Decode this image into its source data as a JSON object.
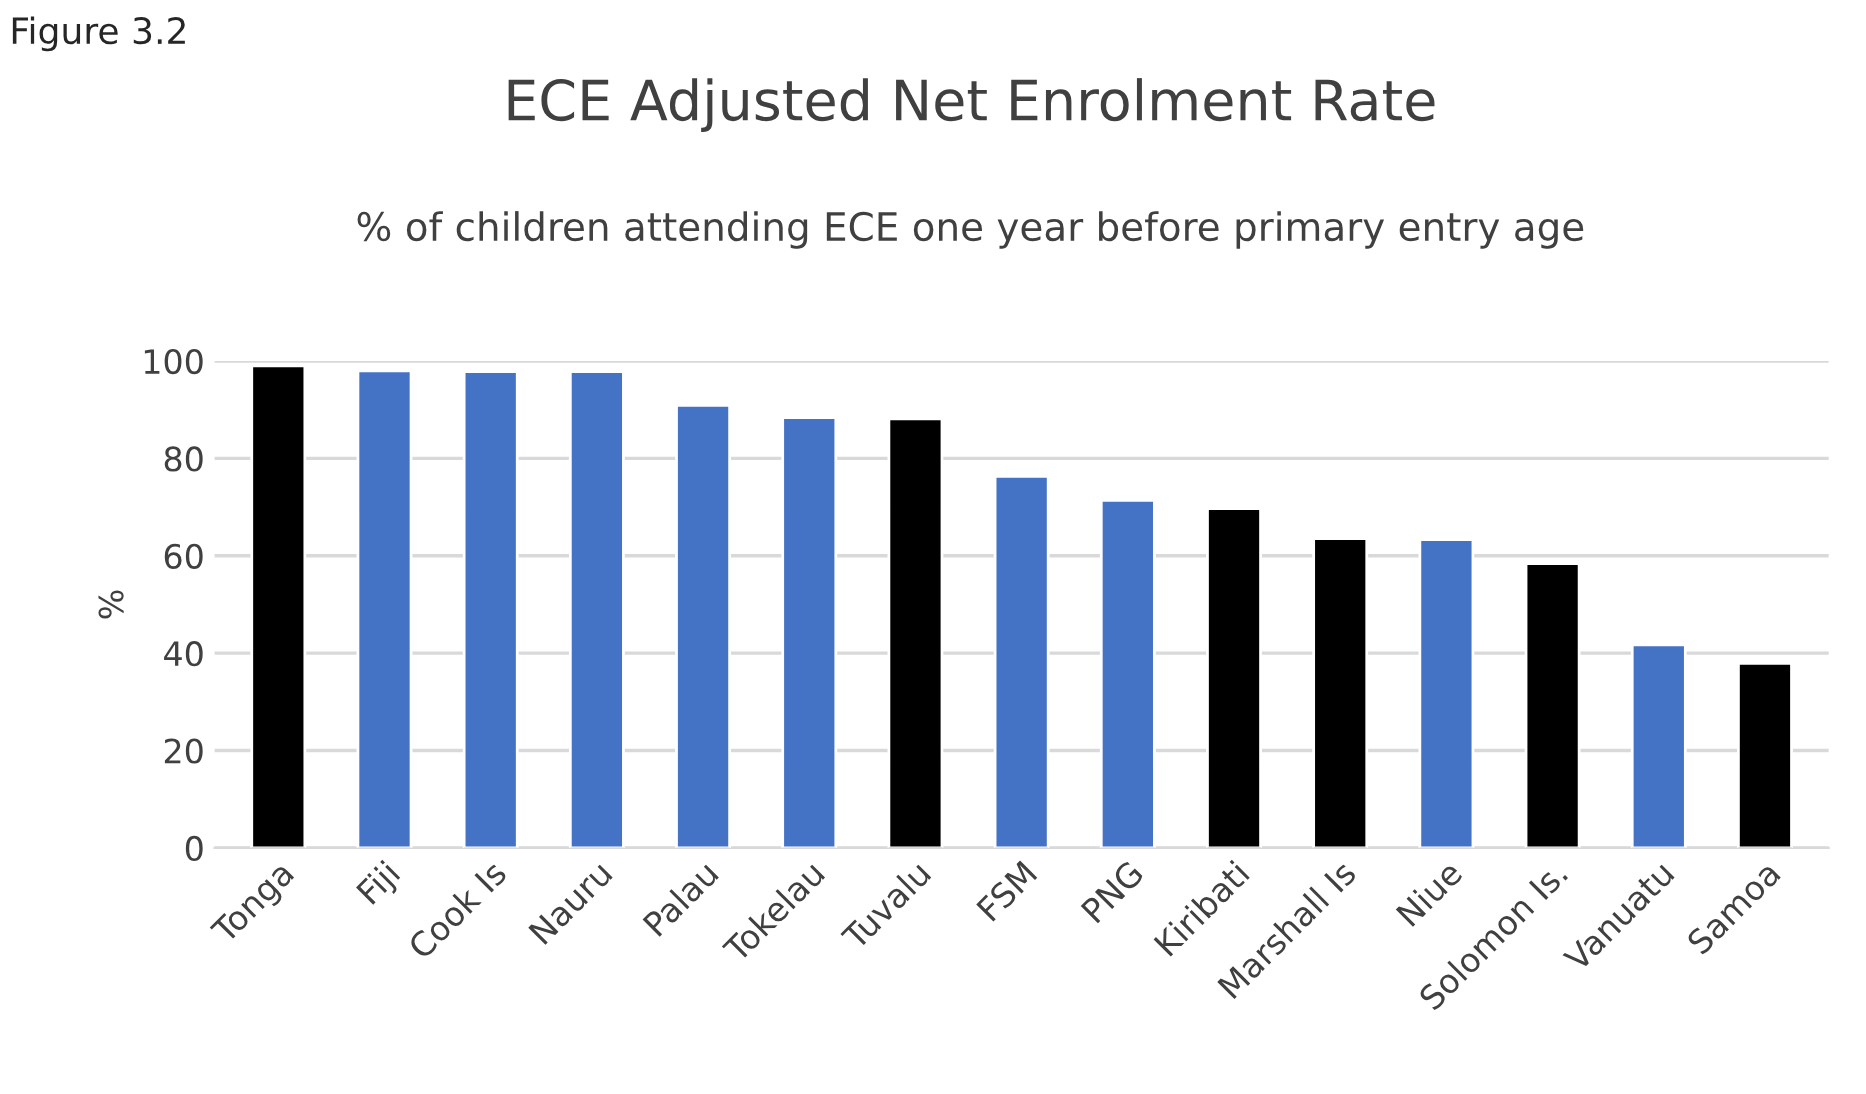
{
  "chart_data": {
    "type": "bar",
    "title": "ECE Adjusted Net Enrolment Rate",
    "subtitle": "% of children attending ECE one year before primary entry age",
    "ylabel": "%",
    "annotations": [
      "Figure 3.2"
    ],
    "categories": [
      "Tonga",
      "Fiji",
      "Cook Is",
      "Nauru",
      "Palau",
      "Tokelau",
      "Tuvalu",
      "FSM",
      "PNG",
      "Kiribati",
      "Marshall Is",
      "Niue",
      "Solomon Is.",
      "Vanuatu",
      "Samoa"
    ],
    "values": [
      99.0,
      98.0,
      97.8,
      97.8,
      90.9,
      88.4,
      88.1,
      76.3,
      71.4,
      69.7,
      63.5,
      63.3,
      58.4,
      41.7,
      37.9
    ],
    "colors": [
      "#000000",
      "#4472c4",
      "#4472c4",
      "#4472c4",
      "#4472c4",
      "#4472c4",
      "#000000",
      "#4472c4",
      "#4472c4",
      "#000000",
      "#000000",
      "#4472c4",
      "#000000",
      "#4472c4",
      "#000000"
    ],
    "ylim": [
      0,
      100
    ],
    "yticks": [
      0,
      20,
      40,
      60,
      80,
      100
    ],
    "grid": "y",
    "legend": false
  }
}
